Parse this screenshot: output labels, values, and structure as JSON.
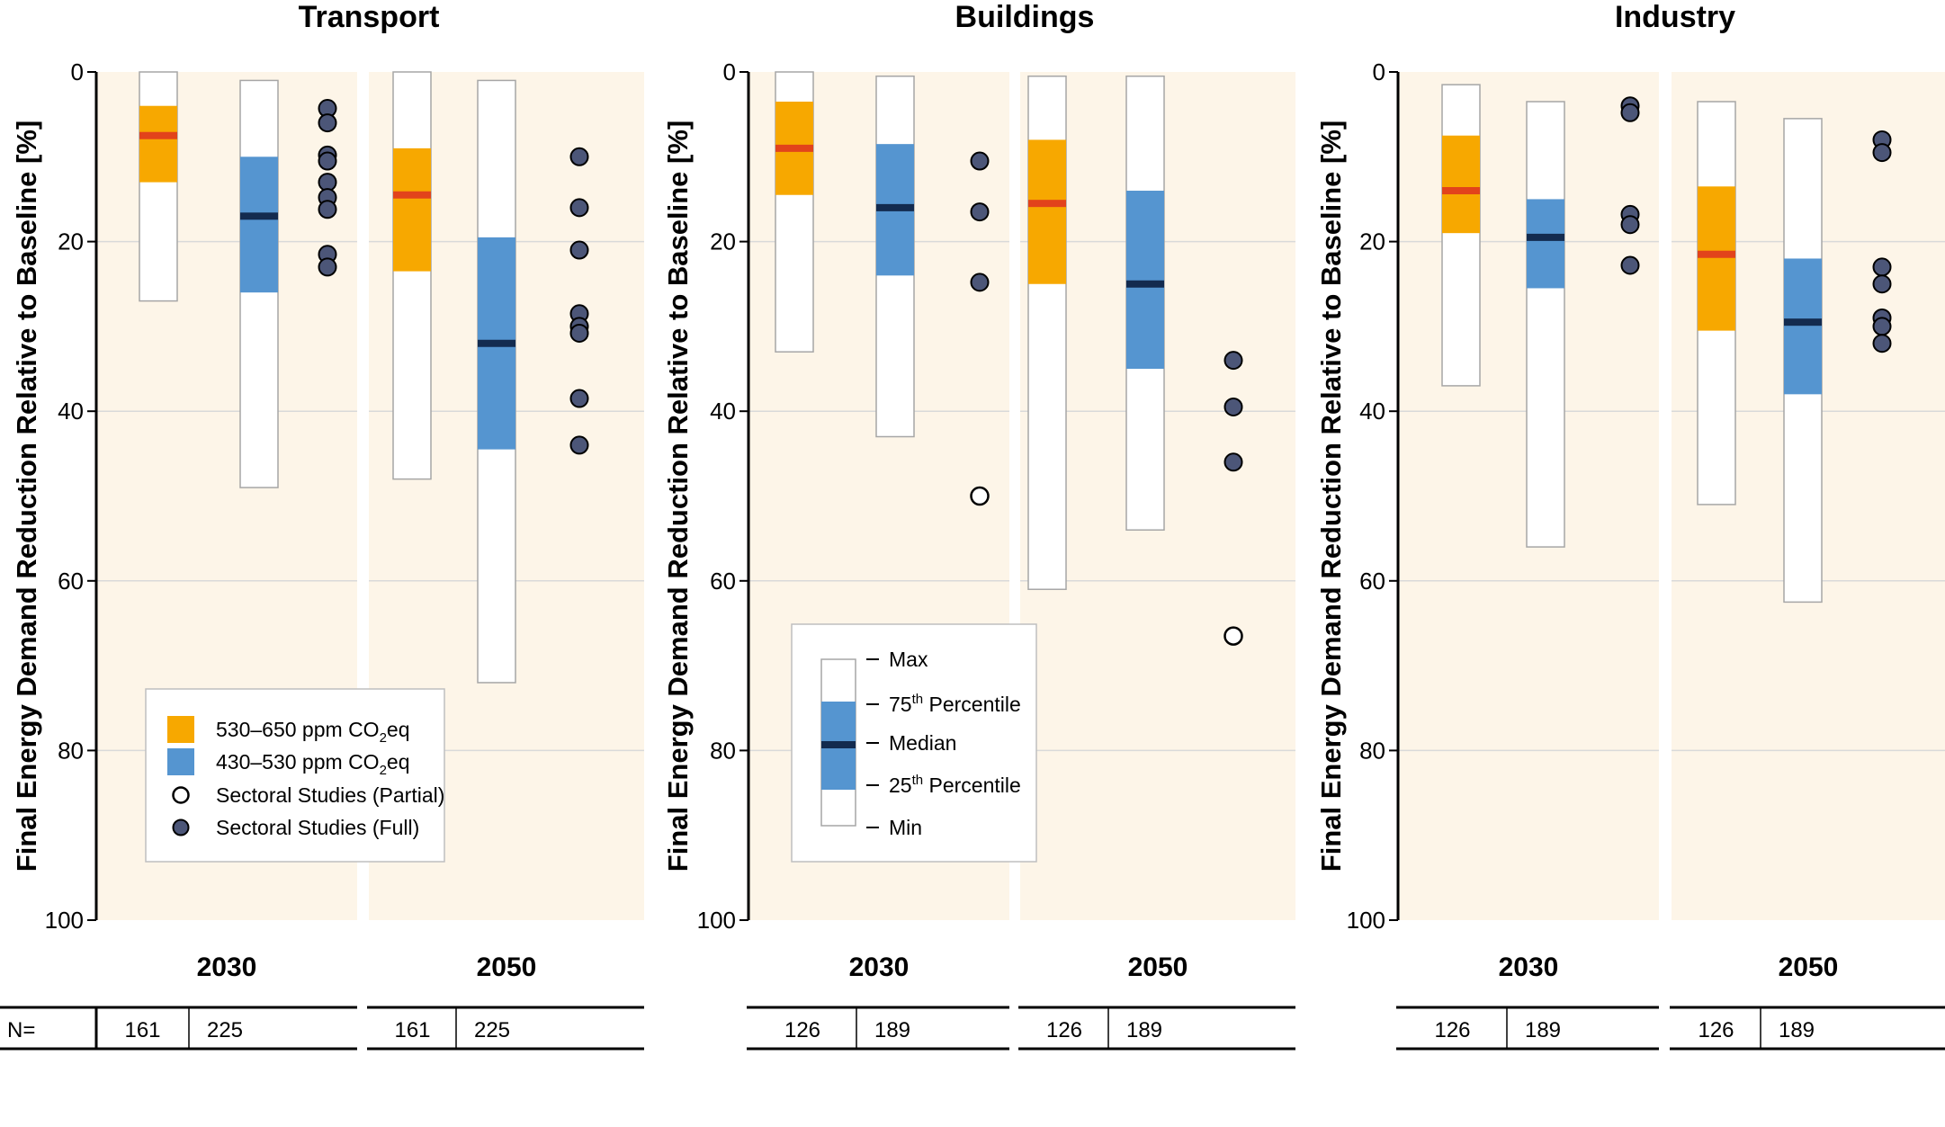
{
  "chart_data": {
    "type": "box-range",
    "y_axis": {
      "label": "Final Energy Demand Reduction Relative to Baseline [%]",
      "ticks": [
        "0",
        "20",
        "40",
        "60",
        "80",
        "100"
      ],
      "tick_values": [
        0,
        20,
        40,
        60,
        80,
        100
      ],
      "range": [
        0,
        100
      ],
      "inverted": true,
      "grid": true
    },
    "colors": {
      "plot_background": "#fdf5e8",
      "orange_fill": "#f7a800",
      "orange_median": "#e2431b",
      "blue_fill": "#5595d0",
      "blue_median": "#132b4f",
      "min_max_box": "#ffffff",
      "dot_full": "#4c5678",
      "gridline": "#d9d9d9"
    },
    "legend_series": {
      "orange": {
        "prefix": "530–650 ppm CO",
        "sub": "2",
        "suffix": "eq"
      },
      "blue": {
        "prefix": "430–530 ppm CO",
        "sub": "2",
        "suffix": "eq"
      },
      "partial": "Sectoral Studies (Partial)",
      "full": "Sectoral Studies (Full)"
    },
    "legend_boxplot": {
      "max": "Max",
      "p75": {
        "text": "75",
        "sup": "th",
        "rest": " Percentile"
      },
      "median": "Median",
      "p25": {
        "text": "25",
        "sup": "th",
        "rest": " Percentile"
      },
      "min": "Min"
    },
    "n_label": "N=",
    "sectors": [
      {
        "name": "Transport",
        "periods": [
          {
            "label": "2030",
            "orange": {
              "min": 0,
              "p25": 4,
              "median": 7.5,
              "p75": 13,
              "max": 27
            },
            "blue": {
              "min": 1,
              "p25": 10,
              "median": 17,
              "p75": 26,
              "max": 49
            },
            "full_studies": [
              4.3,
              6,
              9.8,
              10.5,
              13,
              14.8,
              16.2,
              21.5,
              23
            ],
            "partial_studies": [],
            "n": [
              "161",
              "225"
            ]
          },
          {
            "label": "2050",
            "orange": {
              "min": 0,
              "p25": 9,
              "median": 14.5,
              "p75": 23.5,
              "max": 48
            },
            "blue": {
              "min": 1,
              "p25": 19.5,
              "median": 32,
              "p75": 44.5,
              "max": 72
            },
            "full_studies": [
              10,
              16,
              21,
              28.5,
              30,
              30.8,
              38.5,
              44
            ],
            "partial_studies": [],
            "n": [
              "161",
              "225"
            ]
          }
        ]
      },
      {
        "name": "Buildings",
        "periods": [
          {
            "label": "2030",
            "orange": {
              "min": 0,
              "p25": 3.5,
              "median": 9,
              "p75": 14.5,
              "max": 33
            },
            "blue": {
              "min": 0.5,
              "p25": 8.5,
              "median": 16,
              "p75": 24,
              "max": 43
            },
            "full_studies": [
              10.5,
              16.5,
              24.8
            ],
            "partial_studies": [
              50
            ],
            "n": [
              "126",
              "189"
            ]
          },
          {
            "label": "2050",
            "orange": {
              "min": 0.5,
              "p25": 8,
              "median": 15.5,
              "p75": 25,
              "max": 61
            },
            "blue": {
              "min": 0.5,
              "p25": 14,
              "median": 25,
              "p75": 35,
              "max": 54
            },
            "full_studies": [
              34,
              39.5,
              46
            ],
            "partial_studies": [
              66.5
            ],
            "n": [
              "126",
              "189"
            ]
          }
        ]
      },
      {
        "name": "Industry",
        "periods": [
          {
            "label": "2030",
            "orange": {
              "min": 1.5,
              "p25": 7.5,
              "median": 14,
              "p75": 19,
              "max": 37
            },
            "blue": {
              "min": 3.5,
              "p25": 15,
              "median": 19.5,
              "p75": 25.5,
              "max": 56
            },
            "full_studies": [
              4,
              4.8,
              16.8,
              18,
              22.8
            ],
            "partial_studies": [],
            "n": [
              "126",
              "189"
            ]
          },
          {
            "label": "2050",
            "orange": {
              "min": 3.5,
              "p25": 13.5,
              "median": 21.5,
              "p75": 30.5,
              "max": 51
            },
            "blue": {
              "min": 5.5,
              "p25": 22,
              "median": 29.5,
              "p75": 38,
              "max": 62.5
            },
            "full_studies": [
              8,
              9.5,
              23,
              25,
              29,
              30,
              32
            ],
            "partial_studies": [],
            "n": [
              "126",
              "189"
            ]
          }
        ]
      }
    ]
  }
}
